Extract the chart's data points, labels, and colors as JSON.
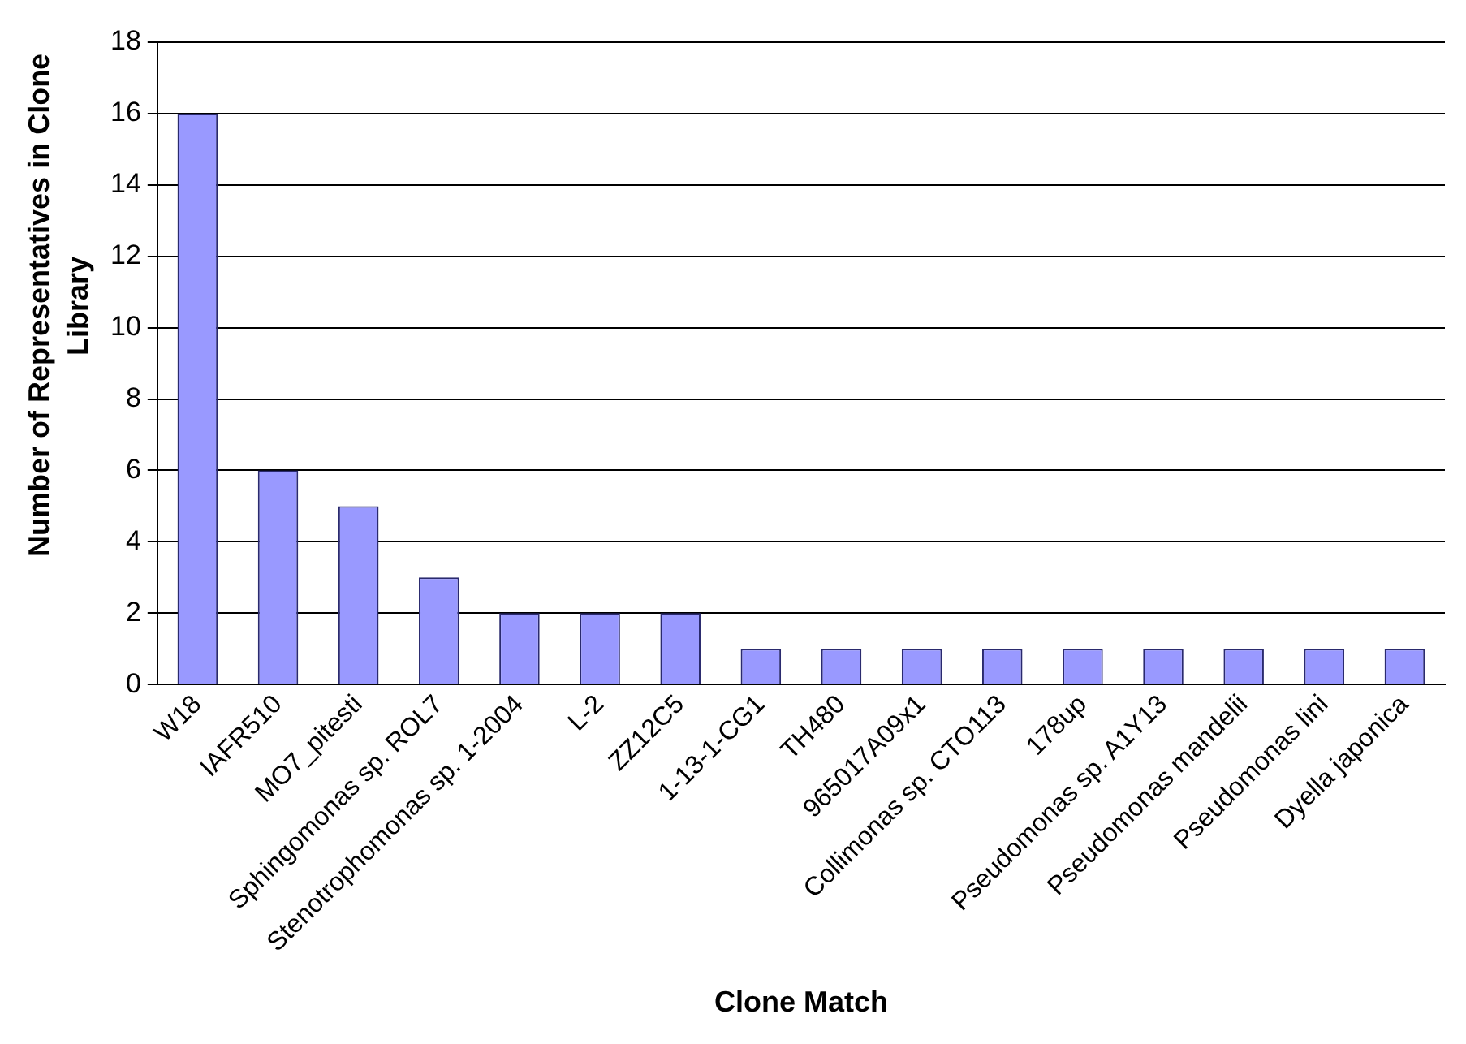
{
  "chart_data": {
    "type": "bar",
    "xlabel": "Clone Match",
    "ylabel": "Number of Representatives in Clone Library",
    "categories": [
      "W18",
      "IAFR510",
      "MO7_pitesti",
      "Sphingomonas sp. ROL7",
      "Stenotrophomonas sp. 1-2004",
      "L-2",
      "ZZ12C5",
      "1-13-1-CG1",
      "TH480",
      "965017A09x1",
      "Collimonas sp. CTO113",
      "178up",
      "Pseudomonas sp. A1Y13",
      "Pseudomonas mandelii",
      "Pseudomonas lini",
      "Dyella japonica"
    ],
    "values": [
      16,
      6,
      5,
      3,
      2,
      2,
      2,
      1,
      1,
      1,
      1,
      1,
      1,
      1,
      1,
      1
    ],
    "color": "#9999ff",
    "ylim": [
      0,
      18
    ],
    "yticks": [
      0,
      2,
      4,
      6,
      8,
      10,
      12,
      14,
      16,
      18
    ],
    "grid": "y",
    "legend": false
  }
}
